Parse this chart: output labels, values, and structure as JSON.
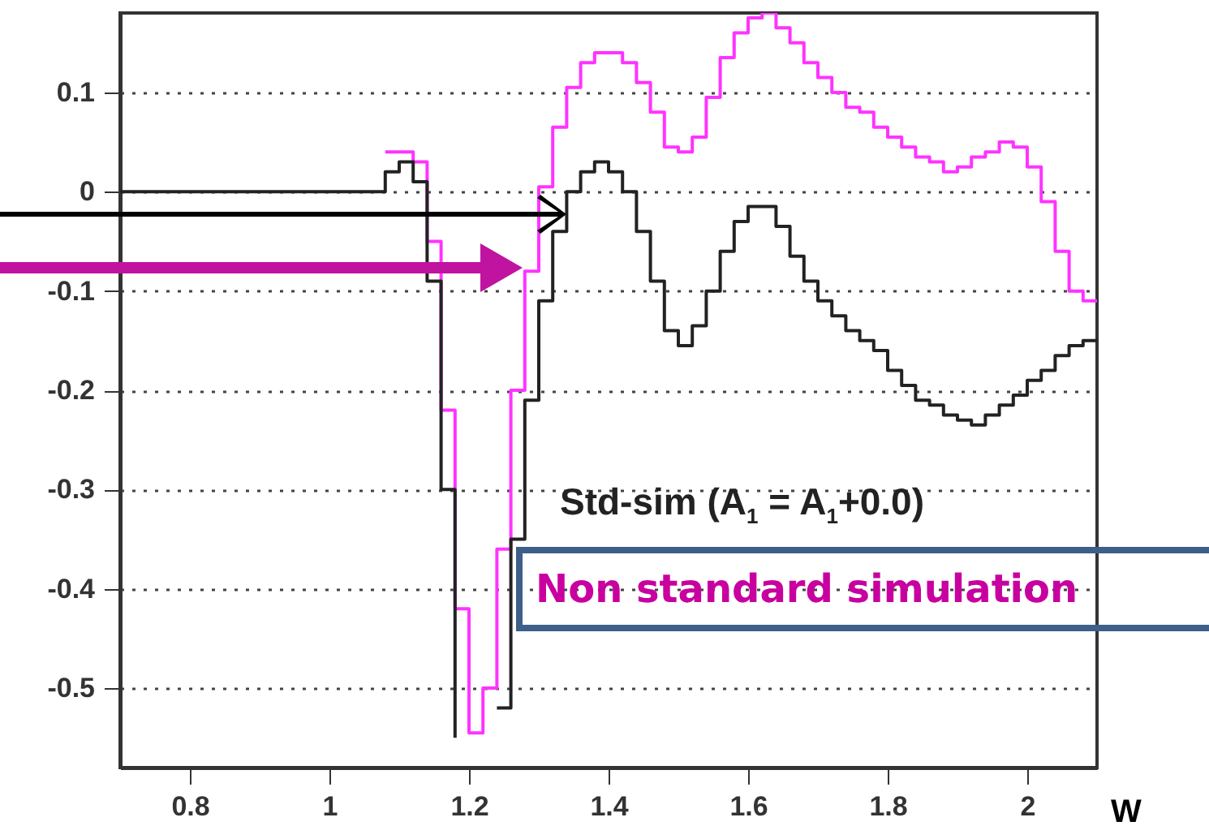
{
  "chart_data": {
    "type": "step",
    "xlabel": "W",
    "xlim": [
      0.7,
      2.1
    ],
    "xticks": [
      0.8,
      1,
      1.2,
      1.4,
      1.6,
      1.8,
      2
    ],
    "ylim": [
      -0.58,
      0.18
    ],
    "yticks": [
      -0.5,
      -0.4,
      -0.3,
      -0.2,
      -0.1,
      0,
      0.1
    ],
    "grid": "y",
    "line_style": "solid",
    "marker": "none",
    "series": [
      {
        "name": "Non standard simulation",
        "color": "#ff33ff",
        "x": [
          1.08,
          1.1,
          1.12,
          1.14,
          1.16,
          1.18,
          1.2,
          1.22,
          1.24,
          1.26,
          1.28,
          1.3,
          1.32,
          1.34,
          1.36,
          1.38,
          1.4,
          1.42,
          1.44,
          1.46,
          1.48,
          1.5,
          1.52,
          1.54,
          1.56,
          1.58,
          1.6,
          1.62,
          1.64,
          1.66,
          1.68,
          1.7,
          1.72,
          1.74,
          1.76,
          1.78,
          1.8,
          1.82,
          1.84,
          1.86,
          1.88,
          1.9,
          1.92,
          1.94,
          1.96,
          1.98,
          2,
          2.02,
          2.04,
          2.06,
          2.08,
          2.1
        ],
        "values": [
          0.04,
          0.04,
          0.03,
          -0.05,
          -0.22,
          -0.42,
          -0.545,
          -0.5,
          -0.36,
          -0.2,
          -0.08,
          0.005,
          0.065,
          0.105,
          0.13,
          0.14,
          0.14,
          0.13,
          0.11,
          0.08,
          0.045,
          0.04,
          0.055,
          0.095,
          0.135,
          0.16,
          0.175,
          0.18,
          0.165,
          0.15,
          0.13,
          0.115,
          0.1,
          0.085,
          0.08,
          0.065,
          0.055,
          0.045,
          0.035,
          0.03,
          0.02,
          0.025,
          0.035,
          0.04,
          0.05,
          0.045,
          0.025,
          -0.01,
          -0.06,
          -0.1,
          -0.11,
          -0.11
        ]
      },
      {
        "name": "Std-sim (A$_{1}$ = A$_{1}$+0.0)",
        "color": "#222222",
        "x": [
          0.7,
          1.08,
          1.1,
          1.12,
          1.14,
          1.16,
          1.18,
          1.2,
          1.22,
          1.24,
          1.26,
          1.28,
          1.3,
          1.32,
          1.34,
          1.36,
          1.38,
          1.4,
          1.42,
          1.44,
          1.46,
          1.48,
          1.5,
          1.52,
          1.54,
          1.56,
          1.58,
          1.6,
          1.62,
          1.64,
          1.66,
          1.68,
          1.7,
          1.72,
          1.74,
          1.76,
          1.78,
          1.8,
          1.82,
          1.84,
          1.86,
          1.88,
          1.9,
          1.92,
          1.94,
          1.96,
          1.98,
          2,
          2.02,
          2.04,
          2.06,
          2.08,
          2.1
        ],
        "values": [
          0,
          0.02,
          0.03,
          0.01,
          -0.09,
          -0.3,
          -0.55,
          null,
          null,
          -0.52,
          -0.35,
          -0.21,
          -0.11,
          -0.04,
          0,
          0.02,
          0.03,
          0.02,
          0,
          -0.04,
          -0.09,
          -0.14,
          -0.155,
          -0.135,
          -0.1,
          -0.06,
          -0.03,
          -0.015,
          -0.015,
          -0.035,
          -0.065,
          -0.09,
          -0.11,
          -0.125,
          -0.14,
          -0.15,
          -0.16,
          -0.18,
          -0.195,
          -0.21,
          -0.215,
          -0.225,
          -0.23,
          -0.235,
          -0.225,
          -0.215,
          -0.205,
          -0.19,
          -0.18,
          -0.165,
          -0.155,
          -0.15,
          -0.15
        ]
      }
    ]
  }
}
